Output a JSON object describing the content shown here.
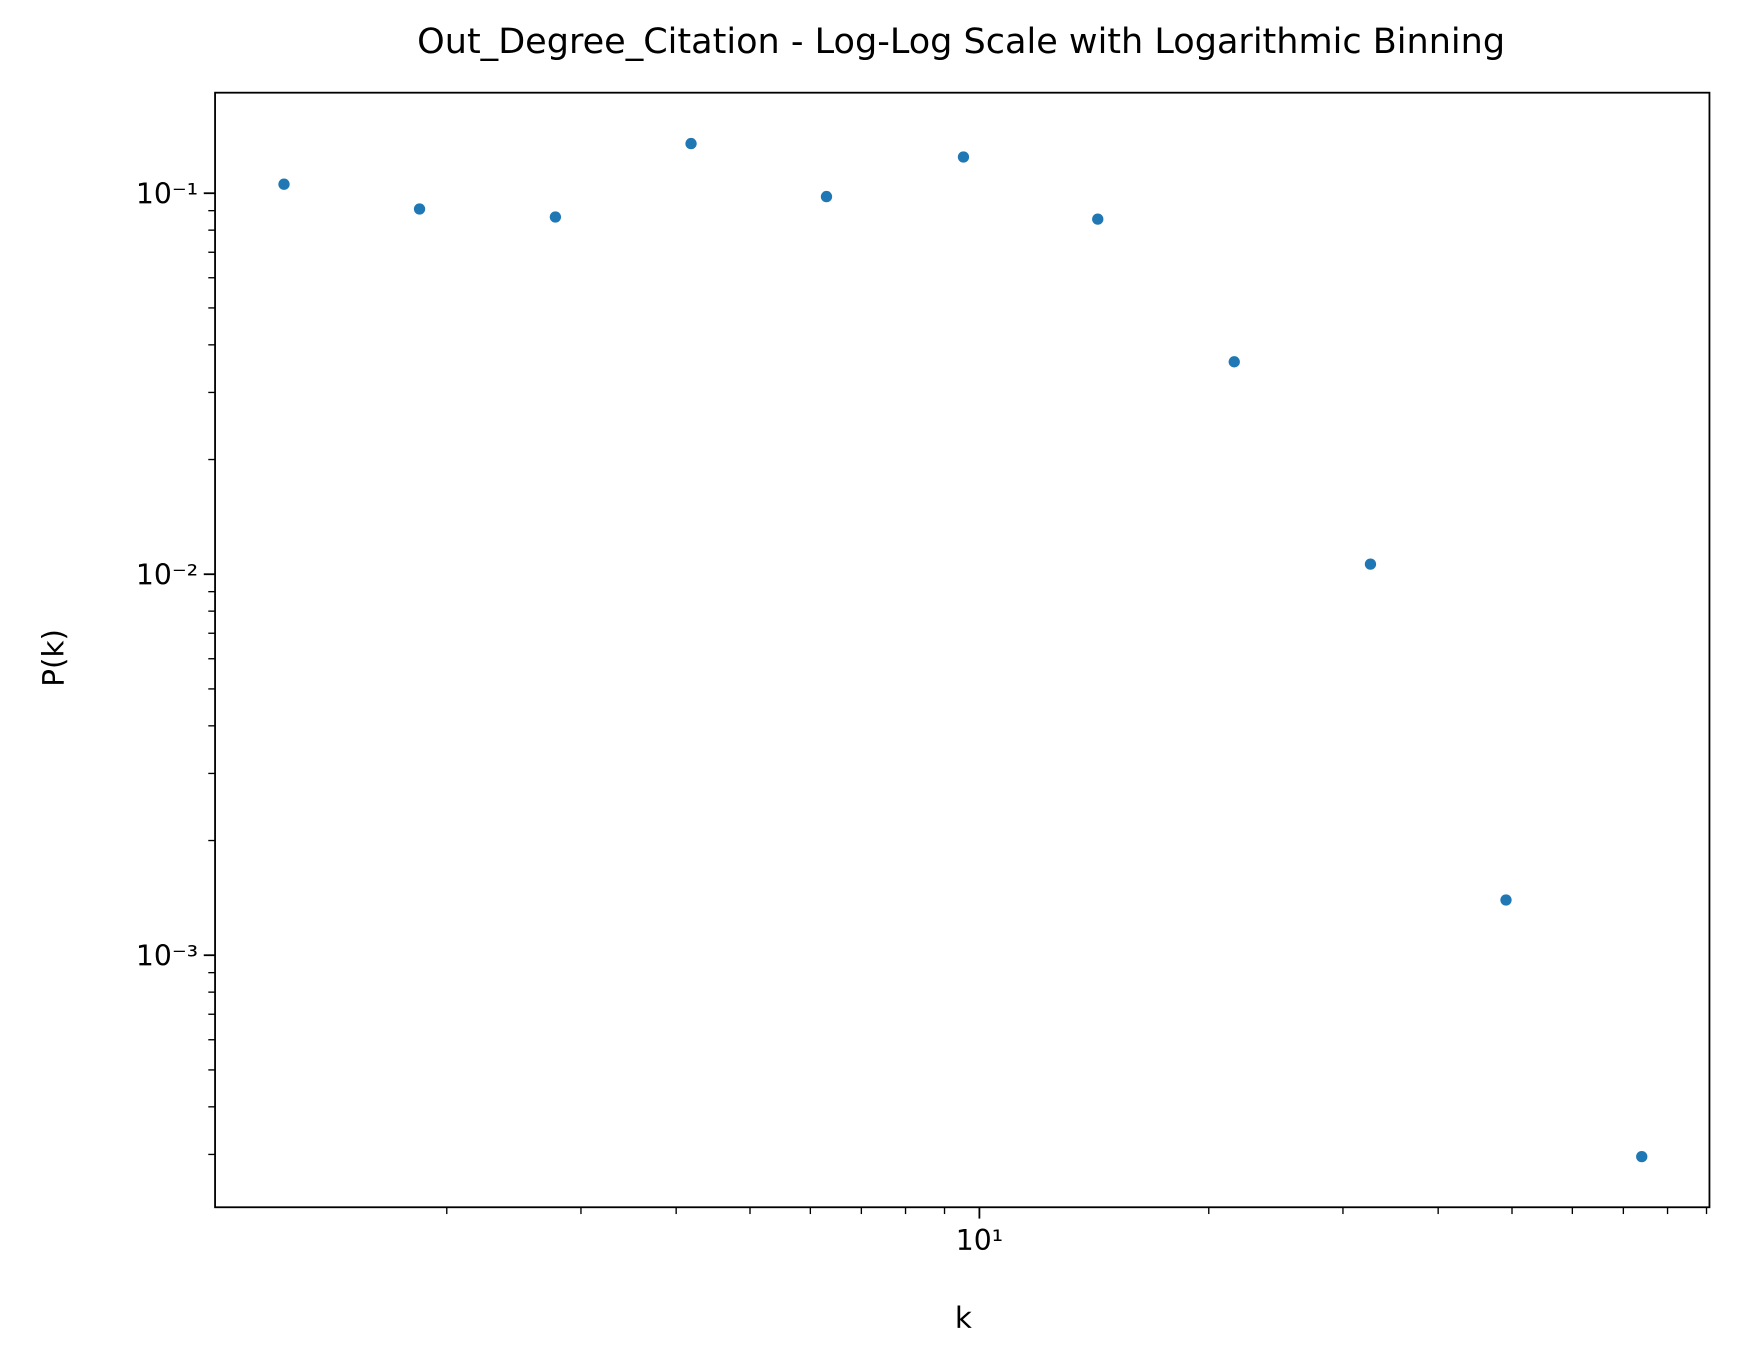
{
  "chart_data": {
    "type": "scatter",
    "title": "Out_Degree_Citation - Log-Log Scale with Logarithmic Binning",
    "x_label": "k",
    "y_label": "P(k)",
    "x_scale": "log",
    "y_scale": "log",
    "grid": false,
    "xlim": [
      0.993,
      90.8
    ],
    "ylim": [
      0.000218,
      0.1836
    ],
    "xticks": [
      {
        "value": 10,
        "label": "10¹"
      }
    ],
    "yticks": [
      {
        "value": 0.001,
        "label": "10⁻³"
      },
      {
        "value": 0.01,
        "label": "10⁻²"
      },
      {
        "value": 0.1,
        "label": "10⁻¹"
      }
    ],
    "xminorticks": [
      2,
      3,
      4,
      5,
      6,
      7,
      8,
      9,
      20,
      30,
      40,
      50,
      60,
      70,
      80,
      90
    ],
    "yminorticks": [
      0.0003,
      0.0004,
      0.0005,
      0.0006,
      0.0007,
      0.0008,
      0.0009,
      0.002,
      0.003,
      0.004,
      0.005,
      0.006,
      0.007,
      0.008,
      0.009,
      0.02,
      0.03,
      0.04,
      0.05,
      0.06,
      0.07,
      0.08,
      0.09
    ],
    "series": [
      {
        "color": "#1f77b4",
        "x": [
          1.223,
          1.842,
          2.777,
          4.184,
          6.3,
          9.53,
          14.3,
          21.6,
          32.6,
          49.1,
          74.0
        ],
        "values": [
          0.1056,
          0.0909,
          0.0866,
          0.135,
          0.098,
          0.1245,
          0.0855,
          0.0361,
          0.01063,
          0.001396,
          0.000296
        ]
      }
    ]
  }
}
